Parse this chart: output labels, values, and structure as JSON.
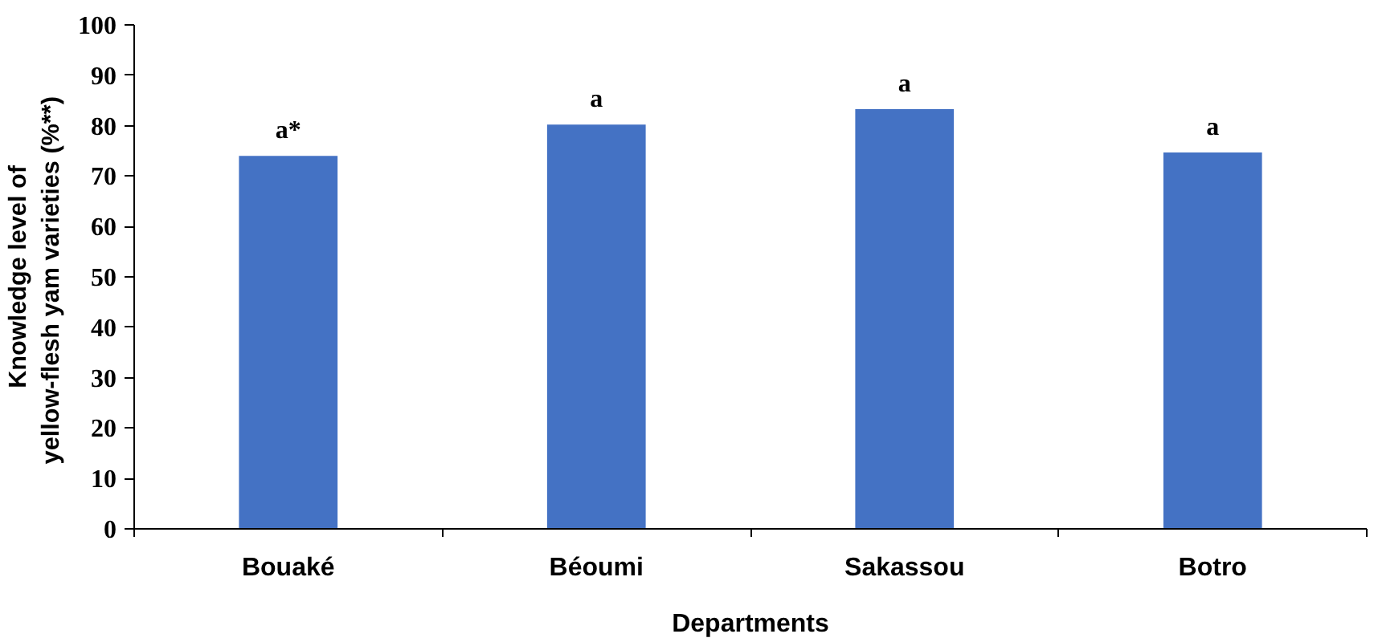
{
  "chart_data": {
    "type": "bar",
    "xlabel": "Departments",
    "ylabel": "Knowledge level of\nyellow-flesh yam varieties  (%**)",
    "categories": [
      "Bouaké",
      "Béoumi",
      "Sakassou",
      "Botro"
    ],
    "values": [
      74.0,
      80.2,
      83.3,
      74.7
    ],
    "value_labels": [
      "a*",
      "a",
      "a",
      "a"
    ],
    "color": "#4472c4",
    "ylim": [
      0,
      100
    ],
    "yticks": [
      0,
      10,
      20,
      30,
      40,
      50,
      60,
      70,
      80,
      90,
      100
    ],
    "grid": false
  }
}
